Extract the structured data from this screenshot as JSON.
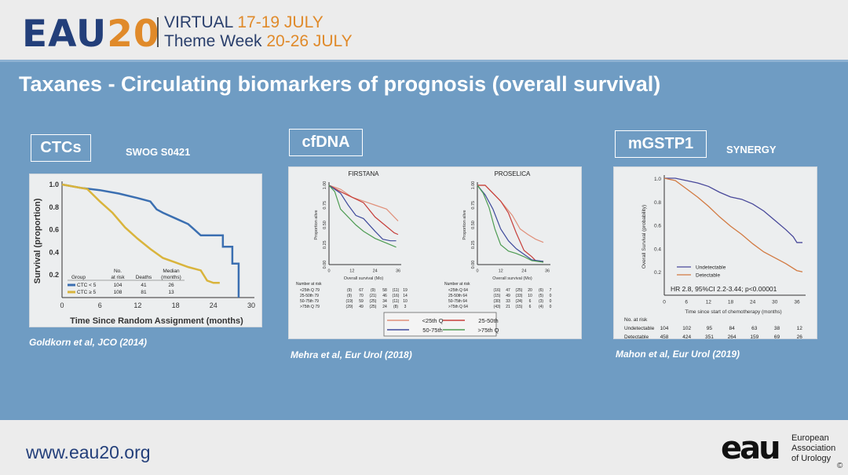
{
  "header": {
    "logo": "EAU",
    "logo_year": "20",
    "line1_a": "VIRTUAL",
    "line1_b": "17-19 JULY",
    "line2_a": "Theme Week",
    "line2_b": "20-26 JULY"
  },
  "slide": {
    "title": "Taxanes - Circulating biomarkers of prognosis  (overall survival)"
  },
  "sections": [
    {
      "tag": "CTCs",
      "subtitle": "SWOG S0421",
      "citation": "Goldkorn et al, JCO (2014)"
    },
    {
      "tag": "cfDNA",
      "citation": "Mehra et al, Eur Urol (2018)"
    },
    {
      "tag": "mGSTP1",
      "subtitle": "SYNERGY",
      "citation": "Mahon et al, Eur Urol (2019)"
    }
  ],
  "footer": {
    "url": "www.eau20.org",
    "org_logo": "eau",
    "org_name_1": "European",
    "org_name_2": "Association",
    "org_name_3": "of Urology",
    "copyright": "©"
  },
  "chart_data": [
    {
      "type": "line",
      "xlabel": "Time Since Random Assignment (months)",
      "ylabel": "Survival (proportion)",
      "xlim": [
        0,
        30
      ],
      "ylim": [
        0,
        1
      ],
      "xticks": [
        0,
        6,
        12,
        18,
        24,
        30
      ],
      "yticks": [
        0.2,
        0.4,
        0.6,
        0.8,
        1.0
      ],
      "legend_headers": [
        "Group",
        "No. at risk",
        "Deaths",
        "Median (months)"
      ],
      "series": [
        {
          "name": "CTC < 5",
          "color": "#3b6fb1",
          "at_risk": "104",
          "deaths": "41",
          "median": "26",
          "points": [
            [
              0,
              1
            ],
            [
              3,
              0.97
            ],
            [
              6,
              0.95
            ],
            [
              9,
              0.92
            ],
            [
              12,
              0.88
            ],
            [
              14,
              0.85
            ],
            [
              15,
              0.78
            ],
            [
              16,
              0.75
            ],
            [
              18,
              0.7
            ],
            [
              20,
              0.65
            ],
            [
              21,
              0.6
            ],
            [
              22,
              0.55
            ],
            [
              25.5,
              0.55
            ],
            [
              25.5,
              0.45
            ],
            [
              27,
              0.45
            ],
            [
              27,
              0.3
            ],
            [
              28,
              0.3
            ],
            [
              28,
              0
            ]
          ]
        },
        {
          "name": "CTC ≥ 5",
          "color": "#d9b43c",
          "at_risk": "108",
          "deaths": "81",
          "median": "13",
          "points": [
            [
              0,
              1
            ],
            [
              4,
              0.96
            ],
            [
              6,
              0.85
            ],
            [
              8,
              0.75
            ],
            [
              10,
              0.62
            ],
            [
              12,
              0.52
            ],
            [
              14,
              0.43
            ],
            [
              16,
              0.35
            ],
            [
              18,
              0.31
            ],
            [
              20,
              0.27
            ],
            [
              22,
              0.24
            ],
            [
              23,
              0.15
            ],
            [
              24,
              0.13
            ],
            [
              25,
              0.13
            ]
          ]
        }
      ]
    },
    {
      "type": "line",
      "title": "FIRSTANA",
      "xlabel": "Overall survival (Mo)",
      "ylabel": "Proportion alive",
      "xlim": [
        0,
        36
      ],
      "ylim": [
        0,
        1
      ],
      "xticks": [
        0,
        12,
        24,
        36
      ],
      "yticks": [
        "0.00",
        "0.25",
        "0.50",
        "0.75",
        "1.00"
      ],
      "risk_title": "Number at risk",
      "risk_rows": [
        [
          "<25th Q 79",
          "(9)",
          "67",
          "(9)",
          "58",
          "(11)",
          "19"
        ],
        [
          "25-50th 79",
          "(9)",
          "70",
          "(21)",
          "46",
          "(16)",
          "14"
        ],
        [
          "50-75th 79",
          "(19)",
          "59",
          "(25)",
          "34",
          "(11)",
          "10"
        ],
        [
          ">75th Q 79",
          "(29)",
          "49",
          "(25)",
          "24",
          "(8)",
          "3"
        ]
      ],
      "series": [
        {
          "name": "<25th Q",
          "color": "#e0907a",
          "points": [
            [
              0,
              1
            ],
            [
              6,
              0.95
            ],
            [
              12,
              0.85
            ],
            [
              18,
              0.8
            ],
            [
              24,
              0.75
            ],
            [
              30,
              0.7
            ],
            [
              34,
              0.6
            ],
            [
              36,
              0.55
            ]
          ]
        },
        {
          "name": "25-50th",
          "color": "#c63f3b",
          "points": [
            [
              0,
              1
            ],
            [
              6,
              0.92
            ],
            [
              12,
              0.85
            ],
            [
              18,
              0.78
            ],
            [
              24,
              0.6
            ],
            [
              30,
              0.48
            ],
            [
              34,
              0.4
            ],
            [
              36,
              0.38
            ]
          ]
        },
        {
          "name": "50-75th",
          "color": "#3e4a9b",
          "points": [
            [
              0,
              1
            ],
            [
              6,
              0.9
            ],
            [
              10,
              0.75
            ],
            [
              14,
              0.62
            ],
            [
              18,
              0.58
            ],
            [
              24,
              0.42
            ],
            [
              28,
              0.32
            ],
            [
              32,
              0.3
            ],
            [
              35,
              0.3
            ]
          ]
        },
        {
          "name": ">75th Q",
          "color": "#4e9c53",
          "points": [
            [
              0,
              1
            ],
            [
              3,
              0.92
            ],
            [
              6,
              0.7
            ],
            [
              10,
              0.6
            ],
            [
              14,
              0.5
            ],
            [
              18,
              0.42
            ],
            [
              24,
              0.33
            ],
            [
              30,
              0.27
            ],
            [
              35,
              0.22
            ]
          ]
        }
      ]
    },
    {
      "type": "line",
      "title": "PROSELICA",
      "xlabel": "Overall survival (Mo)",
      "ylabel": "Proportion alive",
      "xlim": [
        0,
        36
      ],
      "ylim": [
        0,
        1
      ],
      "xticks": [
        0,
        12,
        24,
        36
      ],
      "yticks": [
        "0.00",
        "0.25",
        "0.50",
        "0.75",
        "1.00"
      ],
      "risk_title": "Number at risk",
      "risk_rows": [
        [
          "<25th Q 64",
          "(16)",
          "47",
          "(25)",
          "20",
          "(6)",
          "7"
        ],
        [
          "25-50th 64",
          "(15)",
          "49",
          "(33)",
          "10",
          "(5)",
          "0"
        ],
        [
          "50-75th 64",
          "(30)",
          "33",
          "(24)",
          "6",
          "(3)",
          "0"
        ],
        [
          ">75th Q 64",
          "(43)",
          "21",
          "(15)",
          "6",
          "(4)",
          "0"
        ]
      ],
      "series": [
        {
          "name": "<25th Q",
          "color": "#e0907a",
          "points": [
            [
              0,
              1
            ],
            [
              4,
              1
            ],
            [
              8,
              0.9
            ],
            [
              12,
              0.8
            ],
            [
              18,
              0.62
            ],
            [
              22,
              0.45
            ],
            [
              26,
              0.38
            ],
            [
              30,
              0.32
            ],
            [
              34,
              0.28
            ]
          ]
        },
        {
          "name": "25-50th",
          "color": "#c63f3b",
          "points": [
            [
              0,
              1
            ],
            [
              4,
              1
            ],
            [
              8,
              0.9
            ],
            [
              12,
              0.8
            ],
            [
              16,
              0.65
            ],
            [
              20,
              0.4
            ],
            [
              24,
              0.18
            ],
            [
              28,
              0.1
            ],
            [
              30,
              0.05
            ],
            [
              34,
              0.04
            ]
          ]
        },
        {
          "name": "50-75th",
          "color": "#3e4a9b",
          "points": [
            [
              0,
              1
            ],
            [
              4,
              0.88
            ],
            [
              8,
              0.7
            ],
            [
              12,
              0.45
            ],
            [
              16,
              0.3
            ],
            [
              20,
              0.2
            ],
            [
              24,
              0.13
            ],
            [
              28,
              0.06
            ],
            [
              34,
              0.04
            ]
          ]
        },
        {
          "name": ">75th Q",
          "color": "#4e9c53",
          "points": [
            [
              0,
              1
            ],
            [
              3,
              0.9
            ],
            [
              6,
              0.72
            ],
            [
              9,
              0.45
            ],
            [
              12,
              0.25
            ],
            [
              16,
              0.17
            ],
            [
              20,
              0.14
            ],
            [
              24,
              0.1
            ],
            [
              28,
              0.05
            ],
            [
              34,
              0.03
            ]
          ]
        }
      ]
    },
    {
      "type": "line",
      "xlabel": "Time since start of chemotherapy (months)",
      "ylabel": "Overall Survival (probability)",
      "xlim": [
        0,
        37.5
      ],
      "ylim": [
        0,
        1
      ],
      "xticks": [
        0,
        6,
        12,
        18,
        24,
        30,
        36
      ],
      "yticks": [
        0.2,
        0.4,
        0.6,
        0.8,
        1.0
      ],
      "annotation": "HR 2.8,  95%CI 2.2-3.44; p<0.00001",
      "risk_title": "No. at risk",
      "risk_rows": [
        [
          "Undetectable",
          "104",
          "102",
          "95",
          "84",
          "63",
          "38",
          "12"
        ],
        [
          "Detectable",
          "458",
          "424",
          "351",
          "264",
          "159",
          "69",
          "26"
        ]
      ],
      "series": [
        {
          "name": "Undetectable",
          "color": "#48489a",
          "points": [
            [
              0,
              1
            ],
            [
              3,
              1
            ],
            [
              6,
              0.98
            ],
            [
              9,
              0.96
            ],
            [
              12,
              0.93
            ],
            [
              15,
              0.88
            ],
            [
              18,
              0.84
            ],
            [
              21,
              0.82
            ],
            [
              24,
              0.78
            ],
            [
              27,
              0.72
            ],
            [
              30,
              0.64
            ],
            [
              33,
              0.56
            ],
            [
              35,
              0.5
            ],
            [
              36,
              0.45
            ],
            [
              37.5,
              0.45
            ]
          ]
        },
        {
          "name": "Detectable",
          "color": "#d27a42",
          "points": [
            [
              0,
              1
            ],
            [
              3,
              0.98
            ],
            [
              6,
              0.91
            ],
            [
              9,
              0.84
            ],
            [
              12,
              0.76
            ],
            [
              15,
              0.67
            ],
            [
              18,
              0.59
            ],
            [
              21,
              0.52
            ],
            [
              24,
              0.44
            ],
            [
              27,
              0.37
            ],
            [
              30,
              0.32
            ],
            [
              33,
              0.27
            ],
            [
              36,
              0.21
            ],
            [
              37.5,
              0.2
            ]
          ]
        }
      ]
    }
  ]
}
